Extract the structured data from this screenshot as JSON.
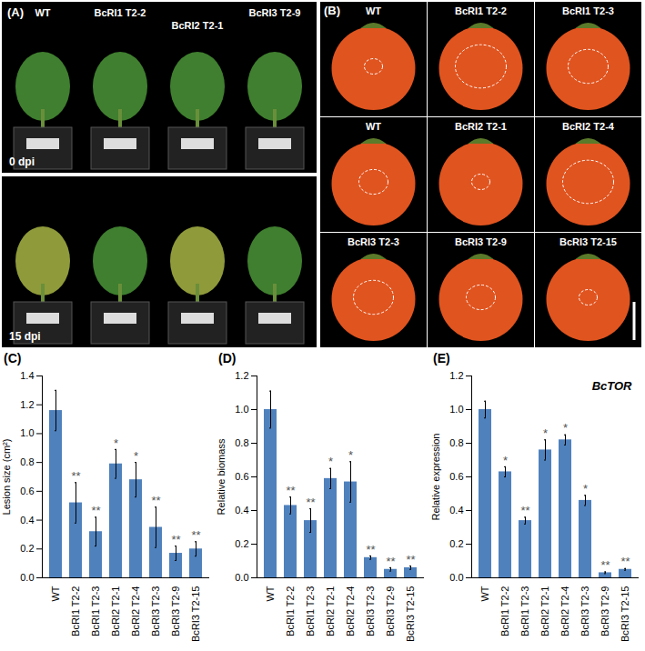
{
  "photo_panels": [
    {
      "title": "(A)",
      "images": [
        {
          "labels": [
            "WT",
            "BcRI1 T2-2",
            "BcRI2 T2-1",
            "BcRI3 T2-9"
          ],
          "caption": "0 dpi"
        },
        {
          "caption": "15 dpi"
        }
      ]
    },
    {
      "title": "(B)",
      "images": [
        {
          "label": "WT"
        },
        {
          "label": "BcRI1 T2-2"
        },
        {
          "label": "BcRI1 T2-3"
        },
        {
          "label": "WT"
        },
        {
          "label": "BcRI2 T2-1"
        },
        {
          "label": "BcRI2 T2-4"
        },
        {
          "label": "BcRI3 T2-3"
        },
        {
          "label": "BcRI3 T2-9"
        },
        {
          "label": "BcRI3 T2-15"
        }
      ]
    }
  ],
  "chart_data": [
    {
      "type": "bar",
      "title": "(C)",
      "y_label": "Lesion size (cm²)",
      "categories": [
        "WT",
        "BcRI1 T2-2",
        "BcRI1 T2-3",
        "BcRI2 T2-1",
        "BcRI2 T2-4",
        "BcRI3 T2-3",
        "BcRI3 T2-9",
        "BcRI3 T2-15"
      ],
      "values": [
        1.16,
        0.52,
        0.32,
        0.79,
        0.68,
        0.35,
        0.17,
        0.2
      ],
      "errors": [
        0.14,
        0.14,
        0.1,
        0.1,
        0.12,
        0.14,
        0.05,
        0.05
      ],
      "significance": [
        null,
        "**",
        "**",
        "*",
        "*",
        "**",
        "**",
        "**"
      ],
      "color": "#4f81bd",
      "ylim": [
        0,
        1.4
      ],
      "yticks": [
        {
          "value": 0,
          "label": "0.0"
        },
        {
          "value": 0.2,
          "label": "0.2"
        },
        {
          "value": 0.4,
          "label": "0.4"
        },
        {
          "value": 0.6,
          "label": "0.6"
        },
        {
          "value": 0.8,
          "label": "0.8"
        },
        {
          "value": 1,
          "label": "1.0"
        },
        {
          "value": 1.2,
          "label": "1.2"
        },
        {
          "value": 1.4,
          "label": "1.4"
        }
      ],
      "grid": false
    },
    {
      "type": "bar",
      "title": "(D)",
      "y_label": "Relative biomass",
      "categories": [
        "WT",
        "BcRI1 T2-2",
        "BcRI1 T2-3",
        "BcRI2 T2-1",
        "BcRI2 T2-4",
        "BcRI3 T2-3",
        "BcRI3 T2-9",
        "BcRI3 T2-15"
      ],
      "values": [
        1.0,
        0.43,
        0.34,
        0.59,
        0.57,
        0.12,
        0.05,
        0.06
      ],
      "errors": [
        0.11,
        0.05,
        0.07,
        0.06,
        0.12,
        0.01,
        0.01,
        0.01
      ],
      "significance": [
        null,
        "**",
        "**",
        "*",
        "*",
        "**",
        "**",
        "**"
      ],
      "color": "#4f81bd",
      "ylim": [
        0,
        1.2
      ],
      "yticks": [
        {
          "value": 0,
          "label": "0.0"
        },
        {
          "value": 0.2,
          "label": "0.2"
        },
        {
          "value": 0.4,
          "label": "0.4"
        },
        {
          "value": 0.6,
          "label": "0.6"
        },
        {
          "value": 0.8,
          "label": "0.8"
        },
        {
          "value": 1,
          "label": "1.0"
        },
        {
          "value": 1.2,
          "label": "1.2"
        }
      ],
      "grid": false
    },
    {
      "type": "bar",
      "title": "(E)",
      "y_label": "Relative expression",
      "annotation": "BcTOR",
      "categories": [
        "WT",
        "BcRI1 T2-2",
        "BcRI1 T2-3",
        "BcRI2 T2-1",
        "BcRI2 T2-4",
        "BcRI3 T2-3",
        "BcRI3 T2-9",
        "BcRI3 T2-15"
      ],
      "values": [
        1.0,
        0.63,
        0.34,
        0.76,
        0.82,
        0.46,
        0.03,
        0.05
      ],
      "errors": [
        0.05,
        0.03,
        0.02,
        0.06,
        0.03,
        0.03,
        0.005,
        0.005
      ],
      "significance": [
        null,
        "*",
        "**",
        "*",
        "*",
        "*",
        "**",
        "**"
      ],
      "color": "#4f81bd",
      "ylim": [
        0,
        1.2
      ],
      "yticks": [
        {
          "value": 0,
          "label": "0.0"
        },
        {
          "value": 0.2,
          "label": "0.2"
        },
        {
          "value": 0.4,
          "label": "0.4"
        },
        {
          "value": 0.6,
          "label": "0.6"
        },
        {
          "value": 0.8,
          "label": "0.8"
        },
        {
          "value": 1,
          "label": "1.0"
        },
        {
          "value": 1.2,
          "label": "1.2"
        }
      ],
      "grid": false
    }
  ]
}
